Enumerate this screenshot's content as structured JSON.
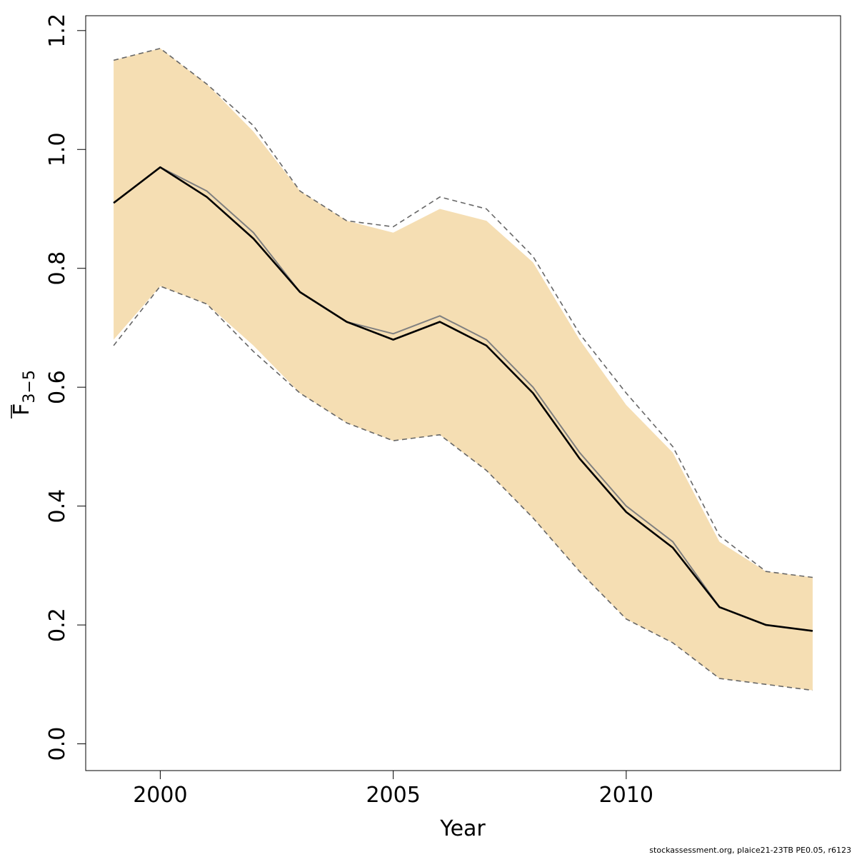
{
  "chart_data": {
    "type": "line",
    "title": "",
    "xlabel": "Year",
    "ylabel": {
      "main": "F",
      "subscript": "3−5"
    },
    "xlim": [
      1998.4,
      2014.6
    ],
    "ylim": [
      -0.045,
      1.225
    ],
    "x_ticks": [
      2000,
      2005,
      2010
    ],
    "x_tick_labels": [
      "2000",
      "2005",
      "2010"
    ],
    "y_ticks": [
      0.0,
      0.2,
      0.4,
      0.6,
      0.8,
      1.0,
      1.2
    ],
    "y_tick_labels": [
      "0.0",
      "0.2",
      "0.4",
      "0.6",
      "0.8",
      "1.0",
      "1.2"
    ],
    "grid": false,
    "x": [
      1999,
      2000,
      2001,
      2002,
      2003,
      2004,
      2005,
      2006,
      2007,
      2008,
      2009,
      2010,
      2011,
      2012,
      2013,
      2014
    ],
    "band": {
      "color": "#f5deb3",
      "upper": [
        1.15,
        1.17,
        1.11,
        1.03,
        0.93,
        0.88,
        0.86,
        0.9,
        0.88,
        0.81,
        0.68,
        0.57,
        0.49,
        0.34,
        0.29,
        0.28
      ],
      "lower": [
        0.68,
        0.77,
        0.74,
        0.67,
        0.59,
        0.54,
        0.51,
        0.52,
        0.46,
        0.38,
        0.29,
        0.21,
        0.17,
        0.11,
        0.1,
        0.09
      ]
    },
    "series": [
      {
        "role": "estimate",
        "color": "#000000",
        "values": [
          0.91,
          0.97,
          0.92,
          0.85,
          0.76,
          0.71,
          0.68,
          0.71,
          0.67,
          0.59,
          0.48,
          0.39,
          0.33,
          0.23,
          0.2,
          0.19
        ]
      },
      {
        "role": "estimate-alt",
        "color": "#808080",
        "values": [
          0.91,
          0.97,
          0.93,
          0.86,
          0.76,
          0.71,
          0.69,
          0.72,
          0.68,
          0.6,
          0.49,
          0.4,
          0.34,
          0.23,
          0.2,
          0.19
        ]
      },
      {
        "role": "upper-bound",
        "color": "#666666",
        "dashed": true,
        "values": [
          1.15,
          1.17,
          1.11,
          1.04,
          0.93,
          0.88,
          0.87,
          0.92,
          0.9,
          0.82,
          0.69,
          0.59,
          0.5,
          0.35,
          0.29,
          0.28
        ]
      },
      {
        "role": "lower-bound",
        "color": "#666666",
        "dashed": true,
        "values": [
          0.67,
          0.77,
          0.74,
          0.66,
          0.59,
          0.54,
          0.51,
          0.52,
          0.46,
          0.38,
          0.29,
          0.21,
          0.17,
          0.11,
          0.1,
          0.09
        ]
      }
    ]
  },
  "footer": {
    "credit": "stockassessment.org, plaice21-23TB  PE0.05, r6123"
  }
}
